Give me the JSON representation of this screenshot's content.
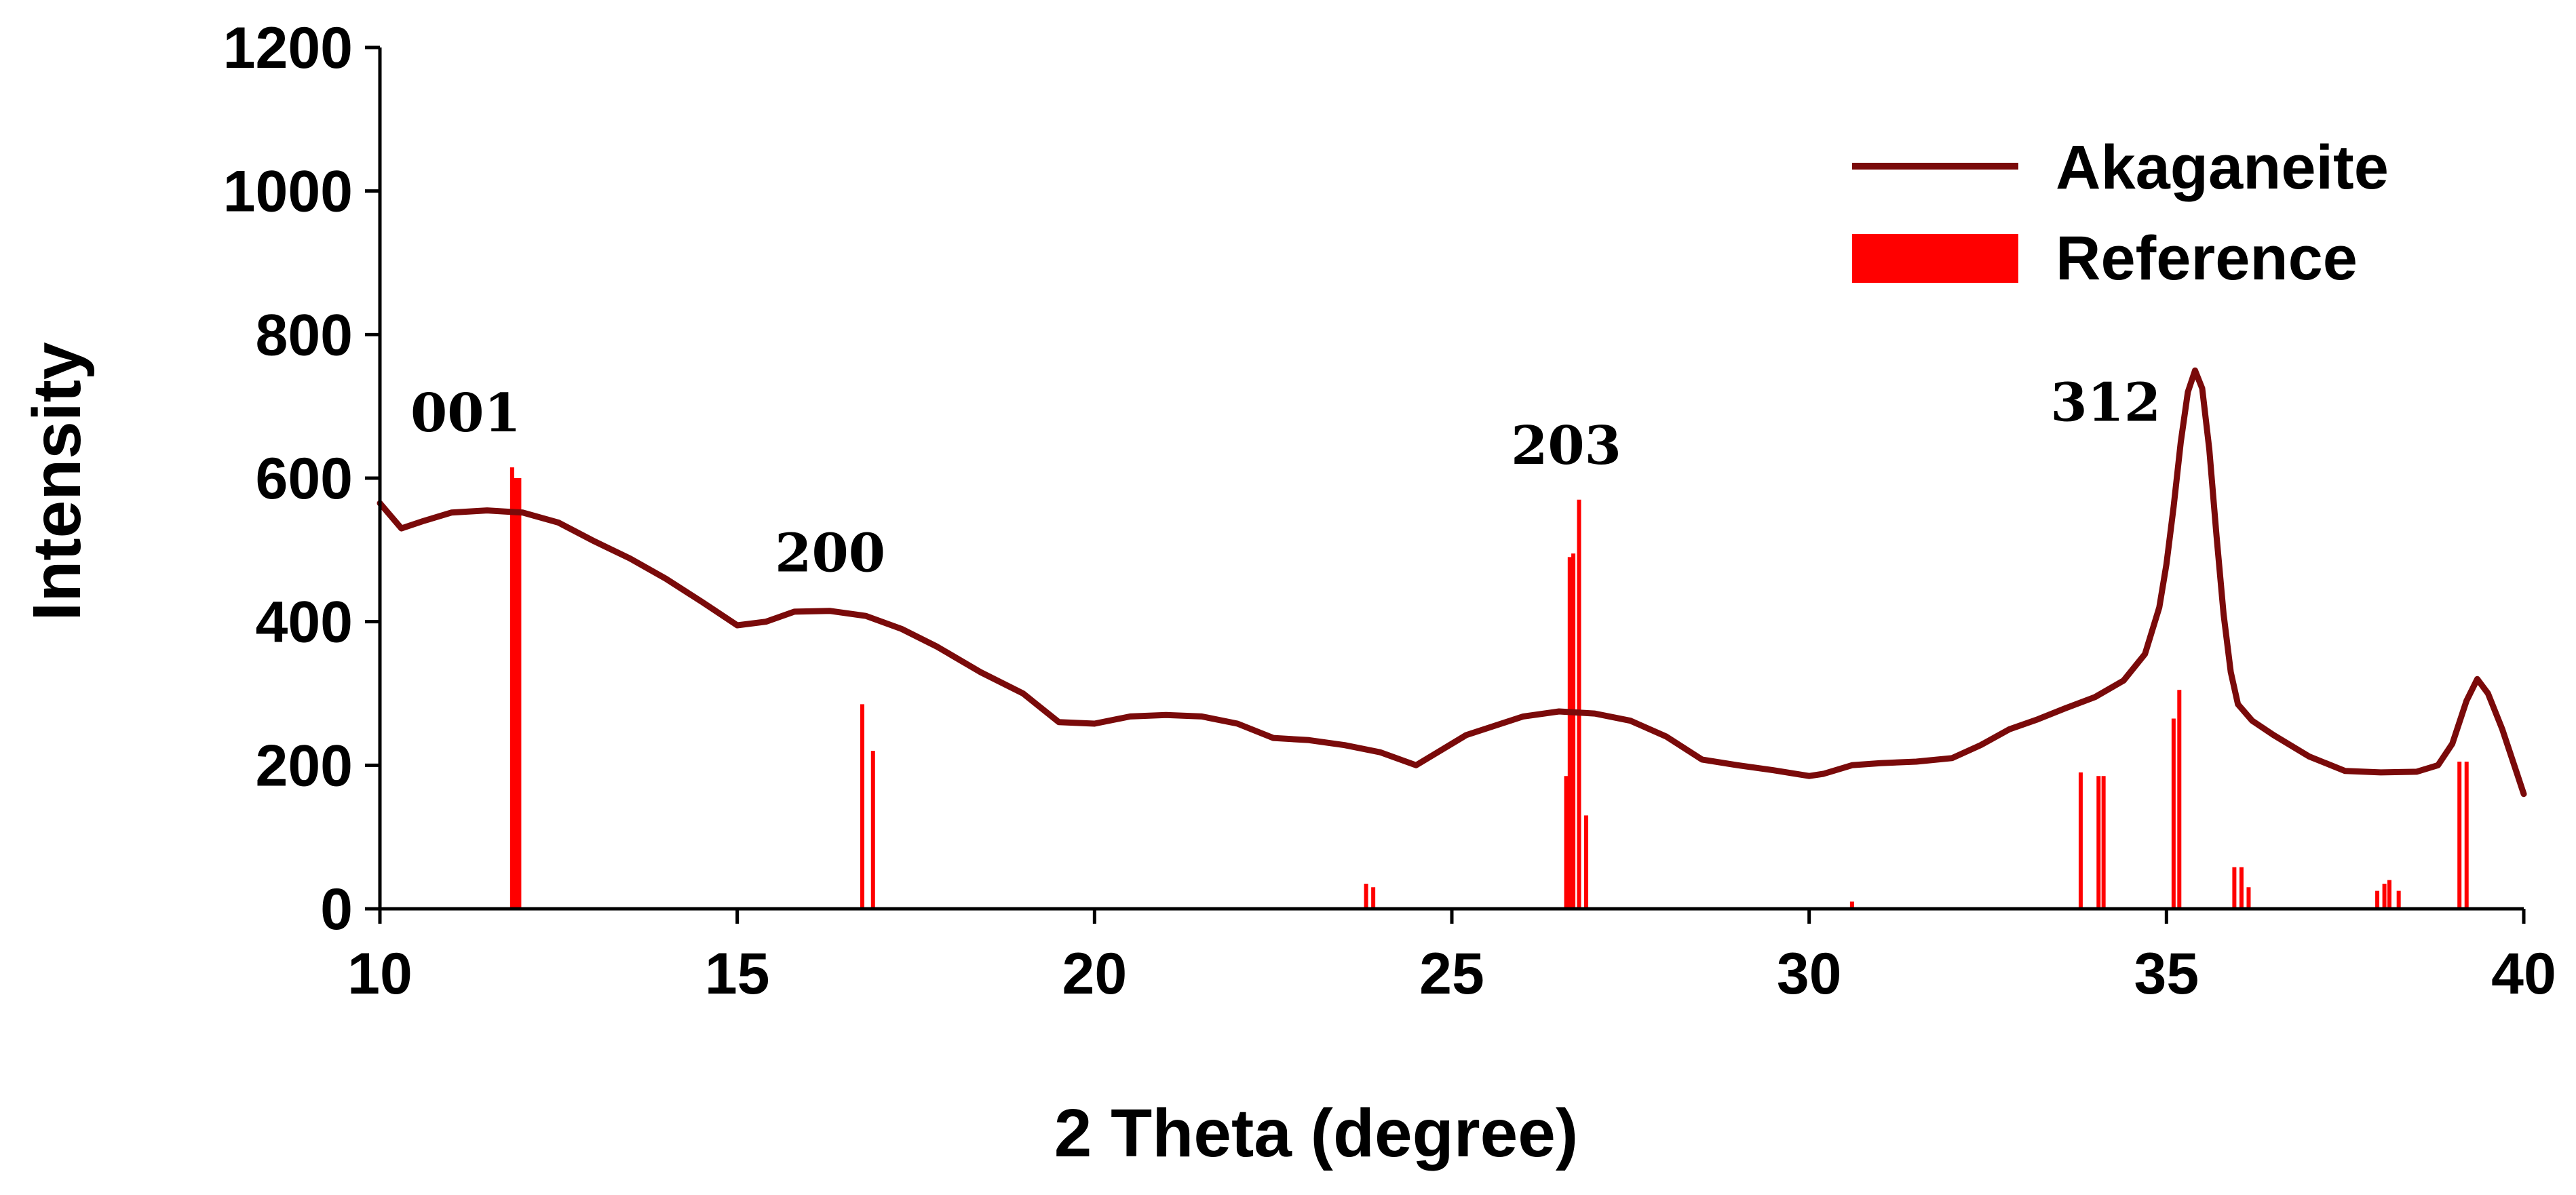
{
  "chart_data": {
    "type": "line",
    "title": "",
    "xlabel": "2 Theta (degree)",
    "ylabel": "Intensity",
    "xlim": [
      10,
      40
    ],
    "ylim": [
      0,
      1200
    ],
    "x_ticks": [
      "10",
      "15",
      "20",
      "25",
      "30",
      "35",
      "40"
    ],
    "y_ticks": [
      "0",
      "200",
      "400",
      "600",
      "800",
      "1000",
      "1200"
    ],
    "grid": false,
    "legend_position": "top-right",
    "colors": {
      "line": "#7a0a0a",
      "reference": "#ff0000",
      "axis": "#000000"
    },
    "series": [
      {
        "name": "Akaganeite",
        "style": "line",
        "x": [
          10,
          10.3,
          10.6,
          11.0,
          11.5,
          12.0,
          12.5,
          13.0,
          13.5,
          14.0,
          14.5,
          15.0,
          15.4,
          15.8,
          16.3,
          16.8,
          17.3,
          17.8,
          18.4,
          19.0,
          19.5,
          20.0,
          20.5,
          21.0,
          21.5,
          22.0,
          22.5,
          23.0,
          23.5,
          24.0,
          24.5,
          24.8,
          25.2,
          25.6,
          26.0,
          26.5,
          27.0,
          27.5,
          28.0,
          28.5,
          29.0,
          29.5,
          30.0,
          30.2,
          30.6,
          31.0,
          31.5,
          32.0,
          32.4,
          32.8,
          33.2,
          33.6,
          34.0,
          34.4,
          34.7,
          34.9,
          35.0,
          35.1,
          35.2,
          35.3,
          35.4,
          35.5,
          35.6,
          35.7,
          35.8,
          35.9,
          36.0,
          36.2,
          36.5,
          37.0,
          37.5,
          38.0,
          38.5,
          38.8,
          39.0,
          39.2,
          39.35,
          39.5,
          39.7,
          39.9,
          40.0
        ],
        "y": [
          565,
          530,
          540,
          552,
          555,
          552,
          538,
          512,
          488,
          460,
          428,
          395,
          400,
          414,
          415,
          408,
          390,
          365,
          330,
          300,
          260,
          258,
          268,
          270,
          268,
          258,
          238,
          235,
          228,
          218,
          200,
          218,
          242,
          255,
          268,
          275,
          272,
          262,
          240,
          208,
          200,
          193,
          185,
          188,
          200,
          203,
          205,
          210,
          228,
          250,
          264,
          280,
          295,
          318,
          355,
          420,
          480,
          560,
          650,
          720,
          750,
          725,
          640,
          520,
          410,
          330,
          285,
          262,
          242,
          212,
          192,
          190,
          191,
          200,
          230,
          290,
          320,
          300,
          250,
          190,
          160
        ]
      },
      {
        "name": "Reference",
        "style": "sticks",
        "x": [
          11.85,
          11.9,
          11.95,
          16.75,
          16.9,
          23.8,
          23.9,
          26.6,
          26.65,
          26.7,
          26.78,
          26.88,
          30.6,
          33.8,
          34.05,
          34.12,
          35.1,
          35.18,
          35.95,
          36.05,
          36.15,
          37.95,
          38.05,
          38.12,
          38.25,
          39.1,
          39.2
        ],
        "y": [
          615,
          600,
          600,
          285,
          220,
          35,
          30,
          185,
          490,
          495,
          570,
          130,
          10,
          190,
          185,
          185,
          265,
          305,
          58,
          58,
          30,
          25,
          35,
          40,
          25,
          205,
          205
        ]
      }
    ],
    "annotations": [
      {
        "text": "001",
        "x": 11.2,
        "y": 665
      },
      {
        "text": "200",
        "x": 16.3,
        "y": 470
      },
      {
        "text": "203",
        "x": 26.6,
        "y": 620
      },
      {
        "text": "312",
        "x": 34.15,
        "y": 680
      }
    ]
  }
}
